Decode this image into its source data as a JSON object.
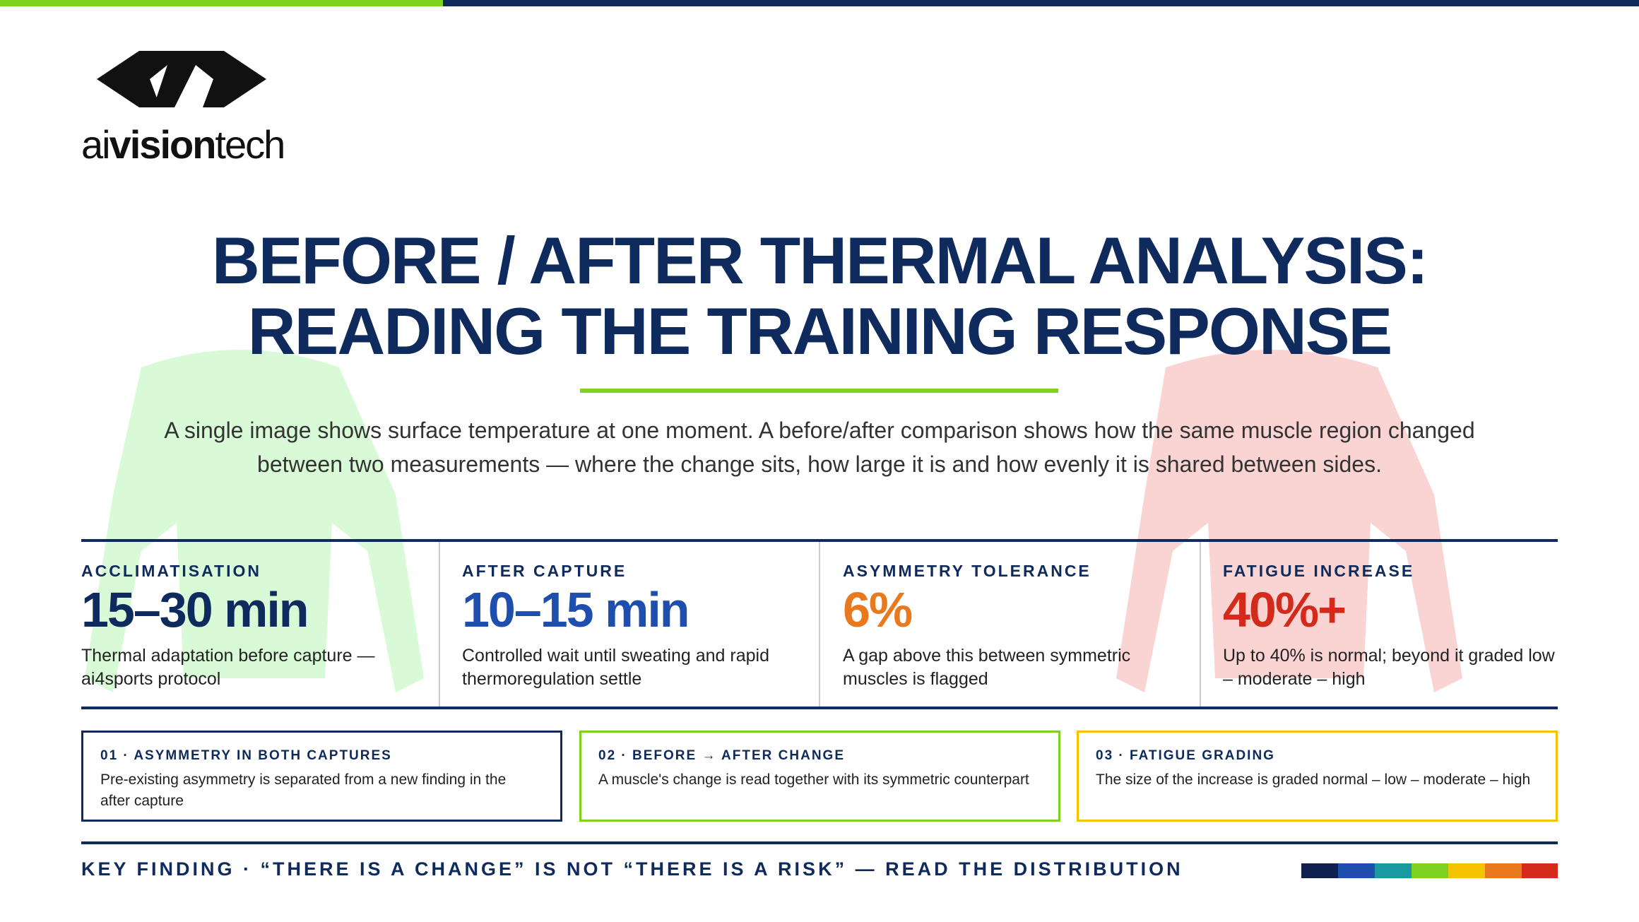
{
  "header": {
    "logo_parts": [
      "ai",
      "vision",
      "tech"
    ],
    "title_lines": [
      "BEFORE / AFTER THERMAL ANALYSIS:",
      "READING THE TRAINING RESPONSE"
    ],
    "subtitle": "A single image shows surface temperature at one moment. A before/after comparison shows how the same muscle region changed between two measurements — where the change sits, how large it is and how evenly it is shared between sides."
  },
  "stats": [
    {
      "label": "ACCLIMATISATION",
      "value": "15–30 min",
      "description": "Thermal adaptation before capture — ai4sports protocol"
    },
    {
      "label": "AFTER CAPTURE",
      "value": "10–15 min",
      "description": "Controlled wait until sweating and rapid thermoregulation settle"
    },
    {
      "label": "ASYMMETRY TOLERANCE",
      "value": "6%",
      "description": "A gap above this between symmetric muscles is flagged"
    },
    {
      "label": "FATIGUE INCREASE",
      "value": "40%+",
      "description": "Up to 40% is normal; beyond it graded low – moderate – high"
    }
  ],
  "notes": [
    {
      "title": "01 · ASYMMETRY IN BOTH CAPTURES",
      "text": "Pre-existing asymmetry is separated from a new finding in the after capture"
    },
    {
      "title": "02 · BEFORE → AFTER CHANGE",
      "text": "A muscle's change is read together with its symmetric counterpart"
    },
    {
      "title": "03 · FATIGUE GRADING",
      "text": "The size of the increase is graded normal – low – moderate – high"
    }
  ],
  "footer": {
    "key_finding": "KEY FINDING · “THERE IS A CHANGE” IS NOT “THERE IS A RISK” — READ THE DISTRIBUTION"
  }
}
